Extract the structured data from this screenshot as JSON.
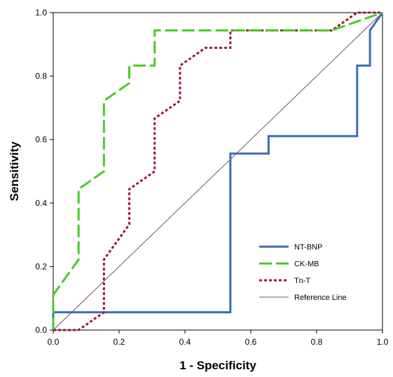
{
  "chart_data": {
    "type": "line",
    "title": "",
    "xlabel": "1 - Specificity",
    "ylabel": "Sensitivity",
    "xlim": [
      0,
      1
    ],
    "ylim": [
      0,
      1
    ],
    "xticks": [
      "0.0",
      "0.2",
      "0.4",
      "0.6",
      "0.8",
      "1.0"
    ],
    "yticks": [
      "0.0",
      "0.2",
      "0.4",
      "0.6",
      "0.8",
      "1.0"
    ],
    "grid": false,
    "legend_position": "bottom-right",
    "series": [
      {
        "name": "NT-BNP",
        "color": "#3a6fb0",
        "dash": "solid",
        "points": [
          [
            0,
            0
          ],
          [
            0,
            0.056
          ],
          [
            0.538,
            0.056
          ],
          [
            0.538,
            0.556
          ],
          [
            0.654,
            0.556
          ],
          [
            0.654,
            0.611
          ],
          [
            0.923,
            0.611
          ],
          [
            0.923,
            0.833
          ],
          [
            0.962,
            0.833
          ],
          [
            0.962,
            0.944
          ],
          [
            1,
            1
          ]
        ]
      },
      {
        "name": "CK-MB",
        "color": "#44cc22",
        "dash": "long",
        "points": [
          [
            0,
            0
          ],
          [
            0,
            0.111
          ],
          [
            0.077,
            0.222
          ],
          [
            0.077,
            0.444
          ],
          [
            0.154,
            0.5
          ],
          [
            0.154,
            0.722
          ],
          [
            0.231,
            0.778
          ],
          [
            0.231,
            0.833
          ],
          [
            0.308,
            0.833
          ],
          [
            0.308,
            0.944
          ],
          [
            0.846,
            0.944
          ],
          [
            1,
            1
          ]
        ]
      },
      {
        "name": "Tn-T",
        "color": "#9b1b30",
        "dash": "dotted",
        "points": [
          [
            0,
            0
          ],
          [
            0.077,
            0
          ],
          [
            0.154,
            0.056
          ],
          [
            0.154,
            0.222
          ],
          [
            0.231,
            0.333
          ],
          [
            0.231,
            0.444
          ],
          [
            0.308,
            0.5
          ],
          [
            0.308,
            0.667
          ],
          [
            0.385,
            0.722
          ],
          [
            0.385,
            0.833
          ],
          [
            0.462,
            0.889
          ],
          [
            0.538,
            0.889
          ],
          [
            0.538,
            0.944
          ],
          [
            0.846,
            0.944
          ],
          [
            0.923,
            1
          ],
          [
            1,
            1
          ]
        ]
      },
      {
        "name": "Reference Line",
        "color": "#7a4a7a",
        "dash": "thin",
        "points": [
          [
            0,
            0
          ],
          [
            1,
            1
          ]
        ]
      }
    ]
  }
}
